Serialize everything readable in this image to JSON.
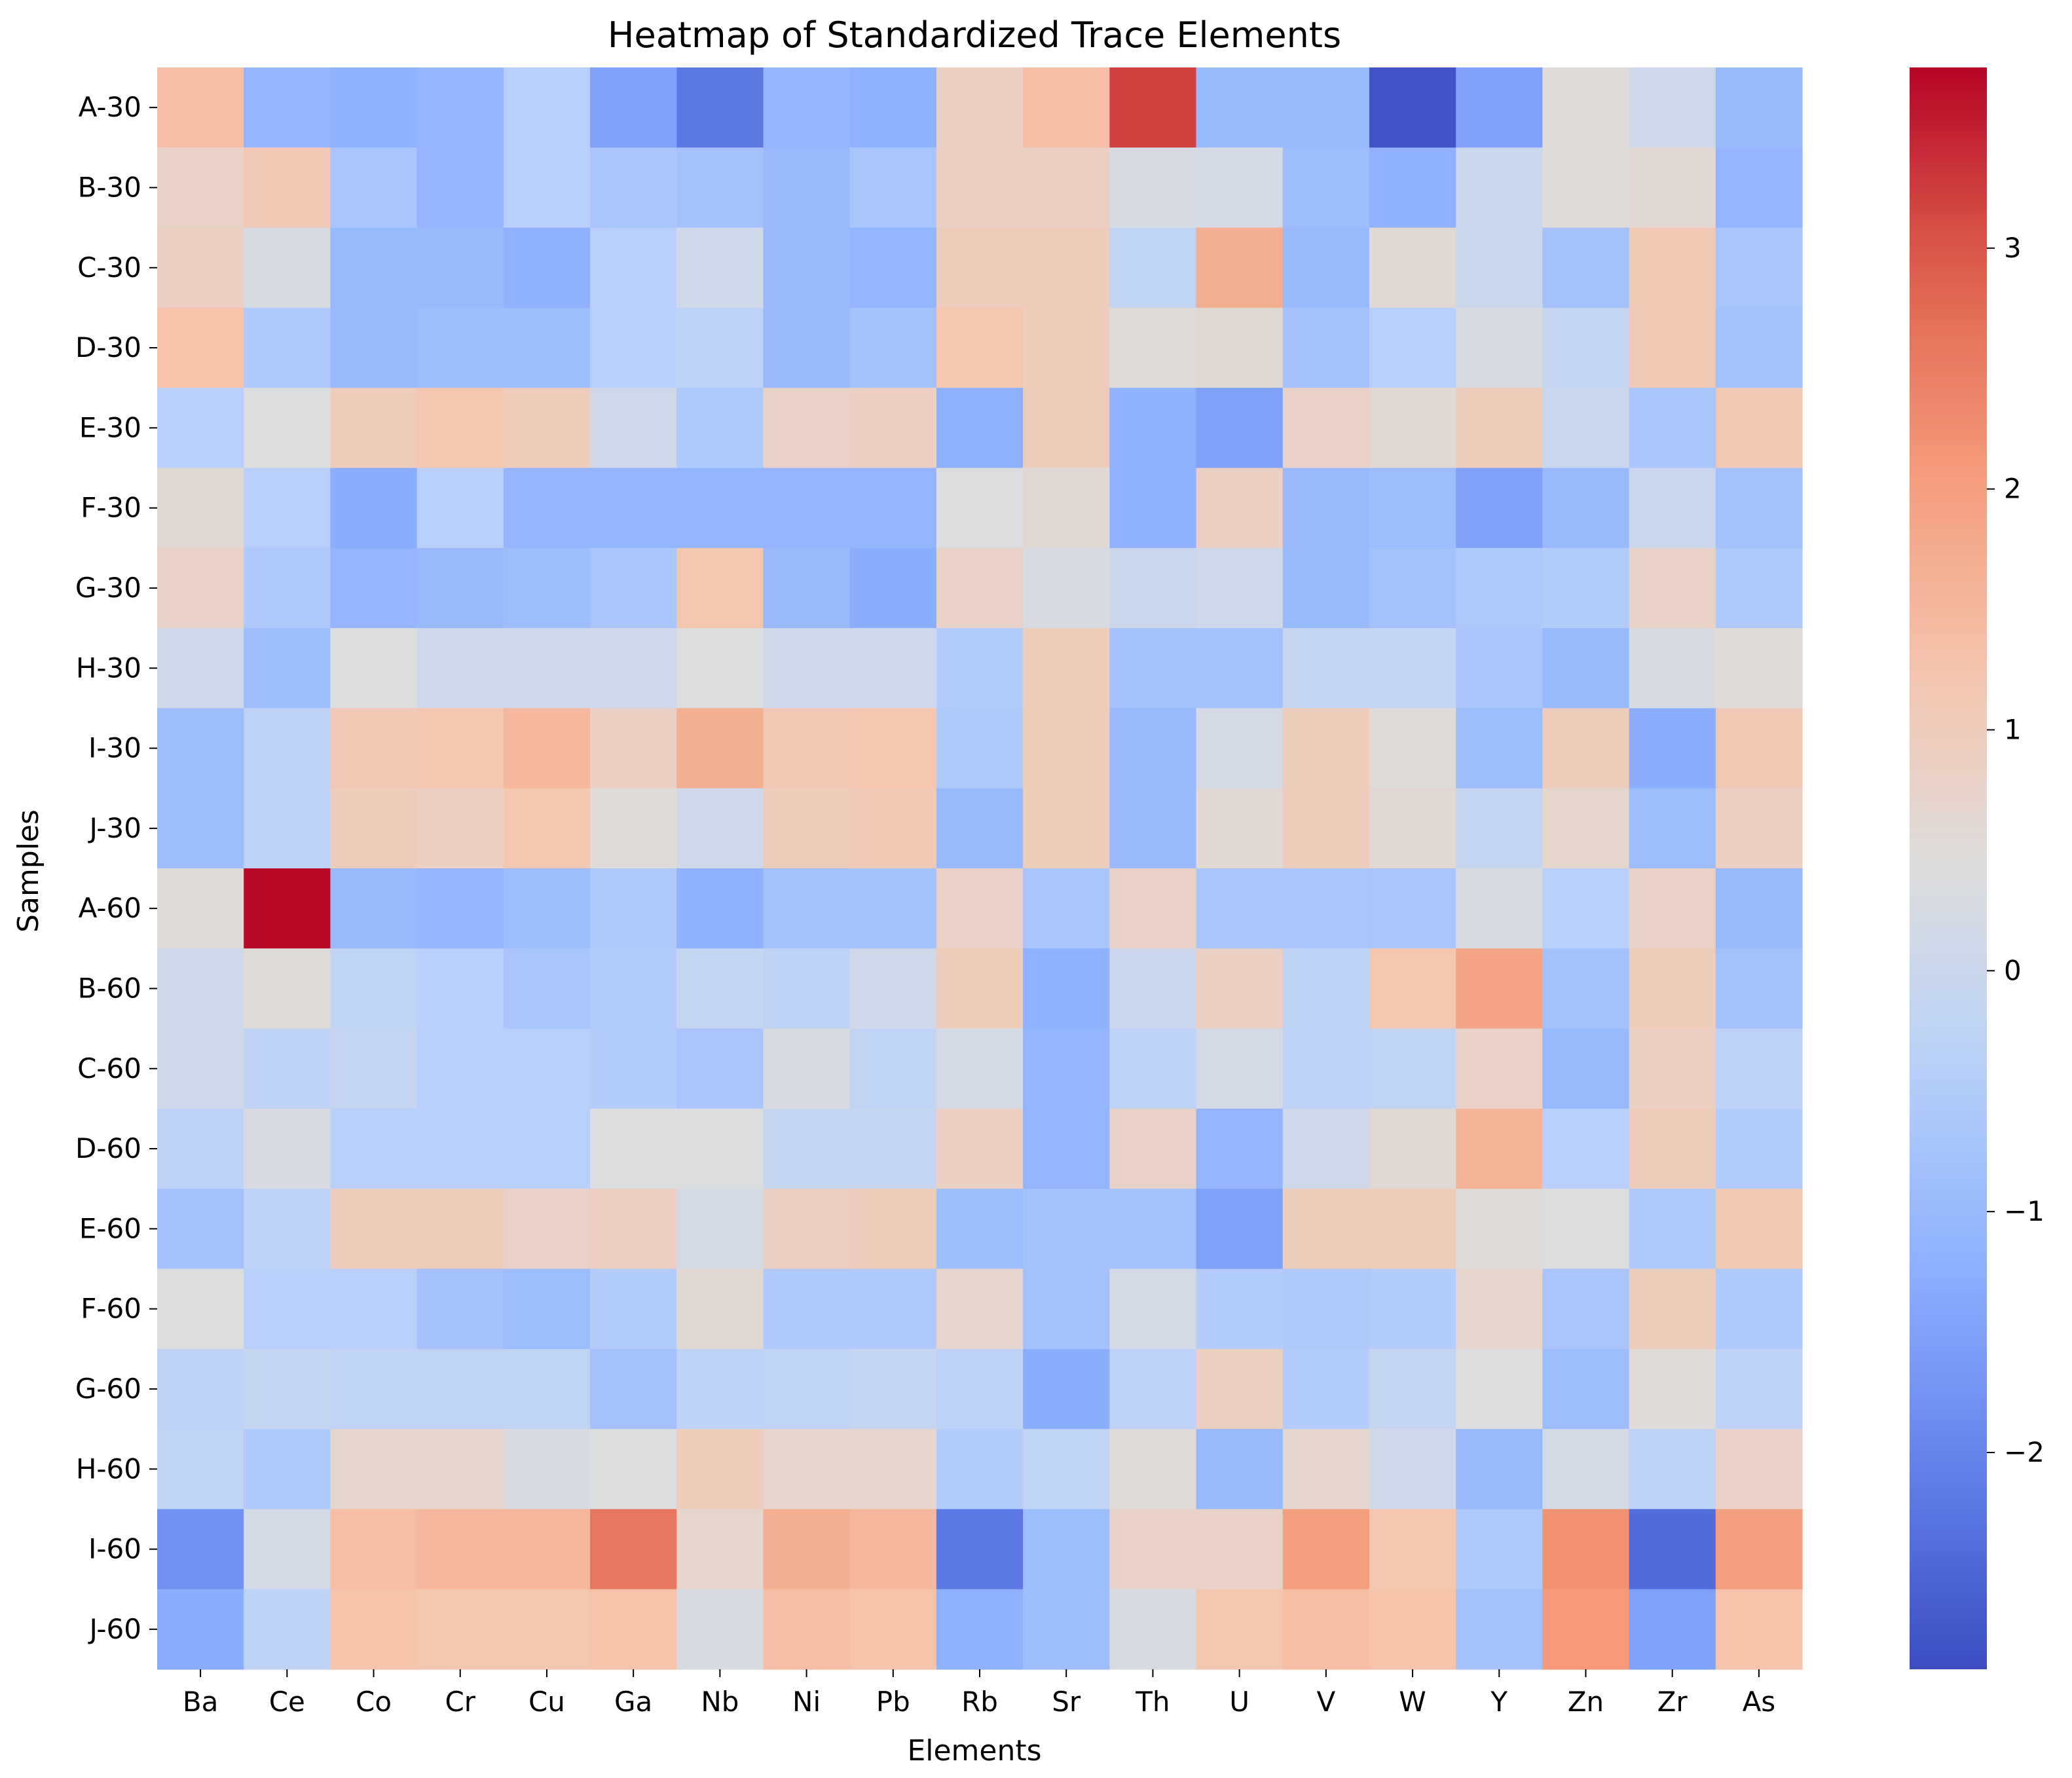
{
  "chart_data": {
    "type": "heatmap",
    "title": "Heatmap of Standardized Trace Elements",
    "xlabel": "Elements",
    "ylabel": "Samples",
    "x": [
      "Ba",
      "Ce",
      "Co",
      "Cr",
      "Cu",
      "Ga",
      "Nb",
      "Ni",
      "Pb",
      "Rb",
      "Sr",
      "Th",
      "U",
      "V",
      "W",
      "Y",
      "Zn",
      "Zr",
      "As"
    ],
    "y": [
      "A-30",
      "B-30",
      "C-30",
      "D-30",
      "E-30",
      "F-30",
      "G-30",
      "H-30",
      "I-30",
      "J-30",
      "A-60",
      "B-60",
      "C-60",
      "D-60",
      "E-60",
      "F-60",
      "G-60",
      "H-60",
      "I-60",
      "J-60"
    ],
    "values": [
      [
        1.4,
        -1.1,
        -1.2,
        -1.1,
        -0.4,
        -1.5,
        -2.2,
        -1.1,
        -1.2,
        0.9,
        1.4,
        3.2,
        -1.0,
        -1.0,
        -2.8,
        -1.5,
        0.5,
        0.1,
        -1.0
      ],
      [
        0.8,
        1.1,
        -0.7,
        -1.1,
        -0.4,
        -0.7,
        -0.8,
        -1.0,
        -0.7,
        0.9,
        0.9,
        0.3,
        0.2,
        -0.9,
        -1.2,
        0.0,
        0.5,
        0.6,
        -1.1
      ],
      [
        0.9,
        0.3,
        -1.0,
        -1.0,
        -1.2,
        -0.4,
        0.1,
        -1.0,
        -1.1,
        1.0,
        1.0,
        -0.2,
        1.7,
        -1.0,
        0.6,
        0.0,
        -0.8,
        1.1,
        -0.7
      ],
      [
        1.3,
        -0.6,
        -1.0,
        -0.9,
        -0.9,
        -0.4,
        -0.3,
        -1.0,
        -0.8,
        1.2,
        1.0,
        0.5,
        0.6,
        -0.8,
        -0.4,
        0.3,
        -0.1,
        1.1,
        -0.8
      ],
      [
        -0.4,
        0.4,
        1.0,
        1.2,
        1.0,
        0.1,
        -0.6,
        0.8,
        0.9,
        -1.2,
        1.0,
        -1.2,
        -1.5,
        0.8,
        0.6,
        1.0,
        0.0,
        -0.7,
        1.1
      ],
      [
        0.6,
        -0.4,
        -1.3,
        -0.4,
        -1.1,
        -1.1,
        -1.1,
        -1.1,
        -1.1,
        0.4,
        0.6,
        -1.2,
        0.9,
        -1.0,
        -0.9,
        -1.5,
        -1.0,
        0.0,
        -0.8
      ],
      [
        0.8,
        -0.6,
        -1.1,
        -1.0,
        -0.9,
        -0.7,
        1.2,
        -1.0,
        -1.3,
        0.8,
        0.3,
        0.0,
        0.1,
        -1.0,
        -0.8,
        -0.6,
        -0.5,
        0.8,
        -0.6
      ],
      [
        0.1,
        -0.9,
        0.4,
        0.1,
        0.1,
        0.1,
        0.4,
        0.1,
        0.1,
        -0.5,
        1.0,
        -0.8,
        -0.8,
        -0.1,
        -0.1,
        -0.7,
        -1.0,
        0.3,
        0.5
      ],
      [
        -0.9,
        -0.3,
        1.1,
        1.2,
        1.5,
        0.9,
        1.7,
        1.1,
        1.2,
        -0.6,
        1.0,
        -1.0,
        0.2,
        1.0,
        0.5,
        -0.9,
        1.0,
        -1.3,
        1.1
      ],
      [
        -0.9,
        -0.3,
        1.0,
        0.9,
        1.2,
        0.5,
        0.1,
        1.0,
        1.1,
        -1.0,
        1.0,
        -1.0,
        0.6,
        1.0,
        0.6,
        -0.1,
        0.7,
        -0.9,
        0.9
      ],
      [
        0.5,
        3.7,
        -1.0,
        -1.1,
        -0.9,
        -0.6,
        -1.2,
        -0.8,
        -0.8,
        0.8,
        -0.7,
        0.8,
        -0.7,
        -0.7,
        -0.7,
        0.3,
        -0.4,
        0.8,
        -1.0
      ],
      [
        0.1,
        0.5,
        -0.2,
        -0.4,
        -0.7,
        -0.5,
        -0.1,
        -0.3,
        0.1,
        1.0,
        -1.2,
        0.0,
        0.9,
        -0.3,
        1.2,
        1.9,
        -0.8,
        1.0,
        -0.8
      ],
      [
        0.1,
        -0.3,
        -0.1,
        -0.4,
        -0.4,
        -0.5,
        -0.7,
        0.3,
        -0.2,
        0.2,
        -1.1,
        -0.3,
        0.2,
        -0.3,
        -0.2,
        0.8,
        -1.0,
        0.9,
        -0.3
      ],
      [
        -0.3,
        0.3,
        -0.4,
        -0.4,
        -0.4,
        0.4,
        0.4,
        -0.1,
        -0.1,
        0.9,
        -1.1,
        0.8,
        -1.1,
        0.1,
        0.6,
        1.6,
        -0.4,
        1.0,
        -0.5
      ],
      [
        -0.8,
        -0.3,
        1.0,
        1.0,
        0.8,
        0.9,
        0.2,
        0.9,
        1.0,
        -0.9,
        -0.8,
        -0.8,
        -1.5,
        1.0,
        1.0,
        0.5,
        0.4,
        -0.6,
        1.1
      ],
      [
        0.4,
        -0.4,
        -0.4,
        -0.8,
        -0.9,
        -0.5,
        0.6,
        -0.6,
        -0.6,
        0.7,
        -0.8,
        0.2,
        -0.5,
        -0.6,
        -0.5,
        0.7,
        -0.7,
        1.0,
        -0.6
      ],
      [
        -0.3,
        -0.1,
        -0.2,
        -0.2,
        -0.2,
        -0.8,
        -0.3,
        -0.2,
        -0.1,
        -0.3,
        -1.3,
        -0.3,
        0.9,
        -0.5,
        -0.1,
        0.4,
        -0.9,
        0.5,
        -0.3
      ],
      [
        -0.2,
        -0.6,
        0.7,
        0.7,
        0.3,
        0.4,
        1.0,
        0.7,
        0.7,
        -0.5,
        -0.2,
        0.5,
        -1.0,
        0.7,
        0.1,
        -1.0,
        0.2,
        -0.3,
        0.8
      ],
      [
        -1.8,
        0.2,
        1.4,
        1.5,
        1.5,
        2.6,
        0.7,
        1.7,
        1.5,
        -2.2,
        -0.9,
        0.8,
        0.8,
        2.0,
        1.2,
        -0.6,
        2.2,
        -2.4,
        2.0
      ],
      [
        -1.3,
        -0.3,
        1.3,
        1.2,
        1.2,
        1.3,
        0.3,
        1.4,
        1.3,
        -1.2,
        -0.9,
        0.3,
        1.2,
        1.4,
        1.3,
        -0.8,
        2.1,
        -1.5,
        1.3
      ]
    ],
    "colormap": "coolwarm",
    "vmin": -2.9,
    "vmax": 3.75,
    "colorbar_ticks": [
      "3",
      "2",
      "1",
      "0",
      "−1",
      "−2"
    ]
  }
}
